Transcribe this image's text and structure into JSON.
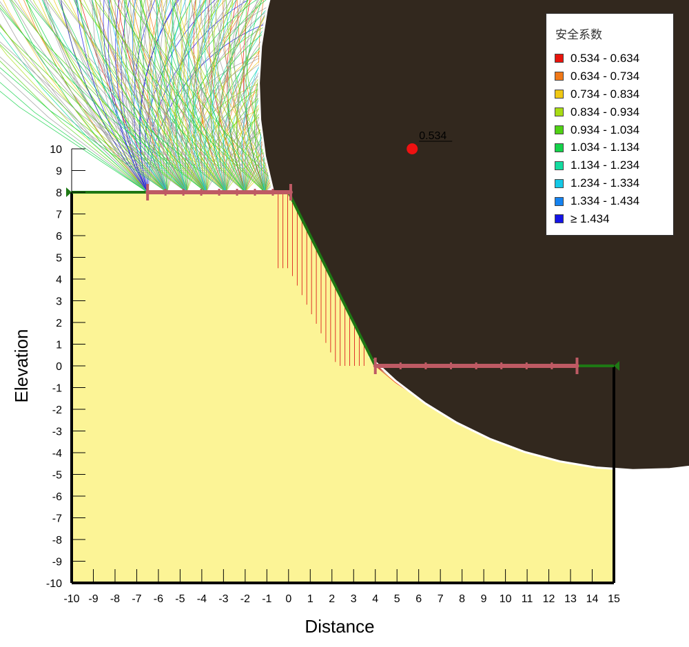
{
  "chart_data": {
    "type": "scatter",
    "xlabel": "Distance",
    "ylabel": "Elevation",
    "xlim": [
      -10,
      15
    ],
    "ylim": [
      -10,
      10
    ],
    "x_ticks": [
      "-10",
      "-9",
      "-8",
      "-7",
      "-6",
      "-5",
      "-4",
      "-3",
      "-2",
      "-1",
      "0",
      "1",
      "2",
      "3",
      "4",
      "5",
      "6",
      "7",
      "8",
      "9",
      "10",
      "11",
      "12",
      "13",
      "14",
      "15"
    ],
    "y_ticks": [
      "10",
      "9",
      "8",
      "7",
      "6",
      "5",
      "4",
      "3",
      "2",
      "1",
      "0",
      "-1",
      "-2",
      "-3",
      "-4",
      "-5",
      "-6",
      "-7",
      "-8",
      "-9",
      "-10"
    ],
    "ground_profile": [
      [
        -10,
        8
      ],
      [
        0,
        8
      ],
      [
        4,
        0
      ],
      [
        15,
        0
      ],
      [
        15,
        -10
      ],
      [
        -10,
        -10
      ]
    ],
    "entry_range": {
      "x": [
        -6.5,
        0.1
      ],
      "y": 8
    },
    "exit_range": {
      "x": [
        4.0,
        13.3
      ],
      "y": 0
    },
    "critical": {
      "center": [
        5.7,
        10.0
      ],
      "factor_label": "0.534"
    },
    "legend": {
      "title": "安全系数",
      "entries": [
        {
          "label": "0.534 - 0.634",
          "color": "#e8140c"
        },
        {
          "label": "0.634 - 0.734",
          "color": "#f07818"
        },
        {
          "label": "0.734 - 0.834",
          "color": "#f0c814"
        },
        {
          "label": "0.834 - 0.934",
          "color": "#a8dc14"
        },
        {
          "label": "0.934 - 1.034",
          "color": "#50d214"
        },
        {
          "label": "1.034 - 1.134",
          "color": "#14d24a"
        },
        {
          "label": "1.134 - 1.234",
          "color": "#14dca0"
        },
        {
          "label": "1.234 - 1.334",
          "color": "#14c8e6"
        },
        {
          "label": "1.334 - 1.434",
          "color": "#1482f0"
        },
        {
          "label": "≥ 1.434",
          "color": "#1414e6"
        }
      ]
    },
    "colors": {
      "soil": "#fcf496",
      "slope_line": "#1e7814",
      "range_bar": "#be5a64",
      "critical_point": "#ee1111",
      "slice_fill": "#32281e",
      "slice_line": "#dc1e1e",
      "trial_default": "#999999"
    }
  }
}
